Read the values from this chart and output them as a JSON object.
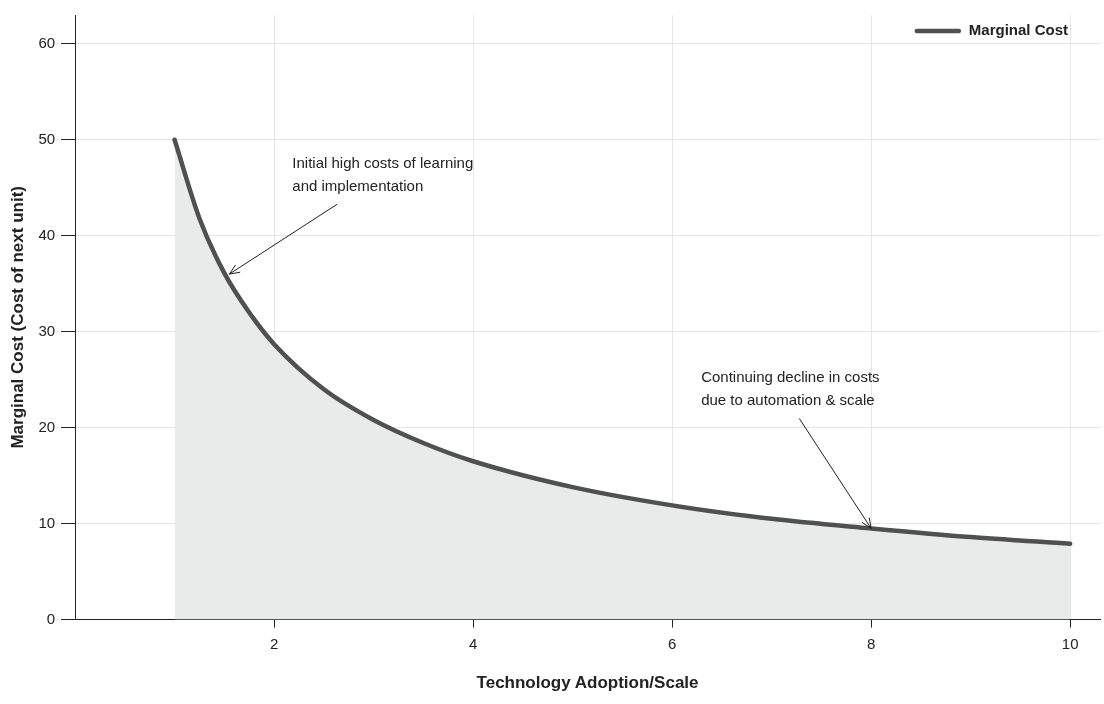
{
  "chart_data": {
    "type": "area",
    "xlabel": "Technology Adoption/Scale",
    "ylabel": "Marginal Cost (Cost of next unit)",
    "x": [
      1,
      1.25,
      1.5,
      1.75,
      2,
      2.5,
      3,
      3.5,
      4,
      5,
      6,
      7,
      8,
      9,
      10
    ],
    "series": [
      {
        "name": "Marginal Cost",
        "color": "#505050",
        "values": [
          50,
          41.8,
          36.1,
          32,
          28.7,
          24,
          20.8,
          18.4,
          16.5,
          13.8,
          11.9,
          10.5,
          9.5,
          8.6,
          7.9
        ]
      }
    ],
    "xlim": [
      0,
      10.3
    ],
    "xticks": [
      2,
      4,
      6,
      8,
      10
    ],
    "ylim": [
      0,
      63
    ],
    "yticks": [
      0,
      10,
      20,
      30,
      40,
      50,
      60
    ],
    "grid": true,
    "legend": "top right",
    "annotations": [
      {
        "text": "Initial high costs of learning\nand implementation",
        "x": 1.55,
        "y": 36
      },
      {
        "text": "Continuing decline in costs\ndue to automation & scale",
        "x": 8,
        "y": 9.5
      }
    ]
  }
}
